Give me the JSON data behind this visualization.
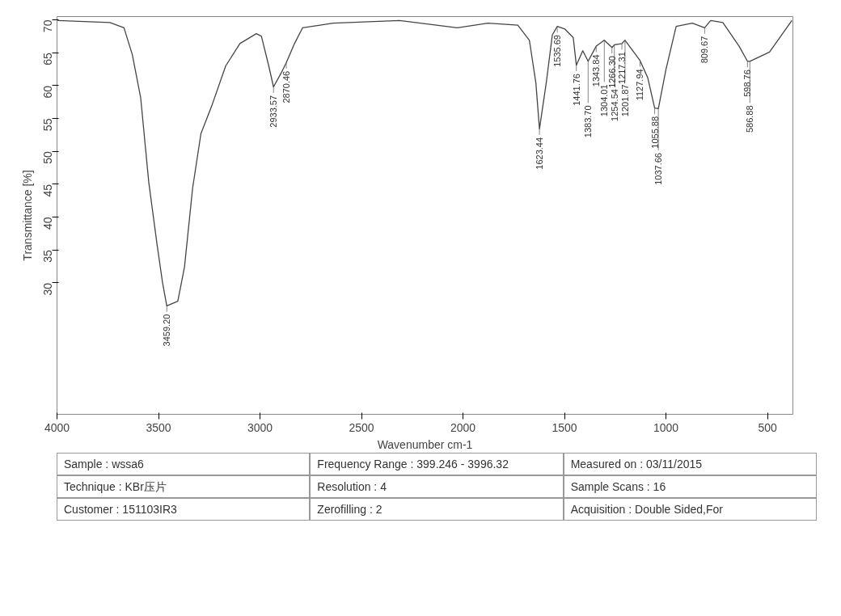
{
  "chart_data": {
    "type": "line",
    "xlabel": "Wavenumber cm-1",
    "ylabel": "Transmittance [%]",
    "xlim": [
      4000,
      375
    ],
    "ylim": [
      10,
      70.5
    ],
    "xticks": [
      4000,
      3500,
      3000,
      2500,
      2000,
      1500,
      1000,
      500
    ],
    "yticks": [
      30,
      35,
      40,
      45,
      50,
      55,
      60,
      65,
      70
    ],
    "grid": false,
    "marker": "none",
    "line_style": "solid",
    "series": [
      {
        "color": "#444444",
        "x": [
          3997,
          3739,
          3670,
          3629,
          3588,
          3548,
          3507,
          3480,
          3459.2,
          3405,
          3372,
          3332,
          3291,
          3238,
          3169,
          3099,
          3018,
          2993,
          2957,
          2933.57,
          2896,
          2870.46,
          2830,
          2790,
          2639,
          2313,
          2028,
          1877,
          1730,
          1673,
          1641,
          1623.44,
          1590,
          1560,
          1535.69,
          1498,
          1457,
          1441.76,
          1410,
          1383.7,
          1343.84,
          1304.01,
          1266.3,
          1254.54,
          1217.31,
          1201.87,
          1127.94,
          1090,
          1055.88,
          1037.66,
          1000,
          950,
          870,
          809.67,
          780,
          720,
          640,
          598.76,
          586.88,
          490,
          380
        ],
        "values": [
          69.9,
          69.6,
          68.8,
          64.7,
          58.2,
          45.3,
          35.8,
          30.0,
          26.5,
          27.2,
          32.4,
          44.4,
          52.7,
          56.9,
          63.0,
          66.4,
          67.9,
          67.5,
          63.0,
          59.8,
          61.9,
          63.5,
          66.4,
          68.8,
          69.5,
          69.9,
          68.8,
          69.5,
          69.2,
          66.9,
          60.4,
          53.4,
          60.4,
          67.7,
          69.0,
          68.6,
          67.3,
          63.1,
          65.3,
          63.7,
          66.0,
          66.9,
          65.8,
          66.2,
          66.4,
          66.9,
          63.8,
          61.2,
          56.6,
          56.5,
          62.5,
          69.0,
          69.5,
          68.8,
          69.9,
          69.6,
          66.0,
          63.7,
          63.7,
          65.1,
          69.9
        ]
      }
    ],
    "annotations": [
      {
        "text": "3459.20",
        "x": 3459.2,
        "y": 26.5
      },
      {
        "text": "2933.57",
        "x": 2933.57,
        "y": 59.8
      },
      {
        "text": "2870.46",
        "x": 2870.46,
        "y": 63.5
      },
      {
        "text": "1623.44",
        "x": 1623.44,
        "y": 53.4
      },
      {
        "text": "1535.69",
        "x": 1535.69,
        "y": 69.0
      },
      {
        "text": "1441.76",
        "x": 1441.76,
        "y": 63.1
      },
      {
        "text": "1383.70",
        "x": 1383.7,
        "y": 63.7
      },
      {
        "text": "1343.84",
        "x": 1343.84,
        "y": 66.0
      },
      {
        "text": "1304.01",
        "x": 1304.01,
        "y": 66.9
      },
      {
        "text": "1266.30",
        "x": 1266.3,
        "y": 65.8
      },
      {
        "text": "1254.54",
        "x": 1254.54,
        "y": 66.2
      },
      {
        "text": "1217.31",
        "x": 1217.31,
        "y": 66.4
      },
      {
        "text": "1201.87",
        "x": 1201.87,
        "y": 66.9
      },
      {
        "text": "1127.94",
        "x": 1127.94,
        "y": 63.8
      },
      {
        "text": "1055.88",
        "x": 1055.88,
        "y": 56.6
      },
      {
        "text": "1037.66",
        "x": 1037.66,
        "y": 56.5
      },
      {
        "text": "809.67",
        "x": 809.67,
        "y": 68.8
      },
      {
        "text": "598.76",
        "x": 598.76,
        "y": 63.7
      },
      {
        "text": "586.88",
        "x": 586.88,
        "y": 63.7
      },
      "Sample : wssa6",
      "Frequency Range : 399.246 - 3996.32",
      "Measured on : 03/11/2015",
      "Technique : KBr压片",
      "Resolution : 4",
      "Sample Scans : 16",
      "Customer : 151103IR3",
      "Zerofilling : 2",
      "Acquisition :  Double Sided,For"
    ]
  }
}
